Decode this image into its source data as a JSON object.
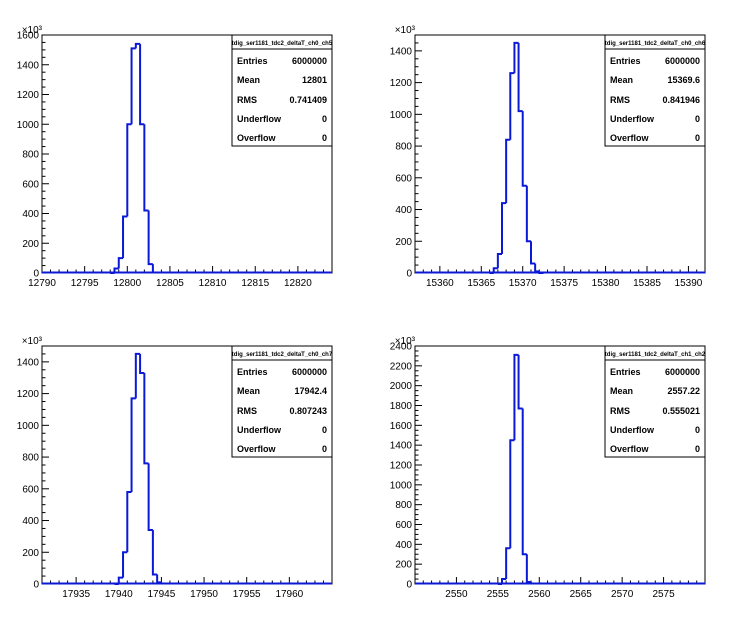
{
  "chart_data": [
    {
      "type": "bar",
      "histogram": true,
      "exponent_label": "×10³",
      "stats": {
        "title": "tdig_ser1181_tdc2_deltaT_ch0_ch5",
        "rows": [
          {
            "label": "Entries",
            "value": "6000000"
          },
          {
            "label": "Mean",
            "value": "12801"
          },
          {
            "label": "RMS",
            "value": "0.741409"
          },
          {
            "label": "Underflow",
            "value": "0"
          },
          {
            "label": "Overflow",
            "value": "0"
          }
        ]
      },
      "xlim": [
        12790,
        12824
      ],
      "ylim": [
        0,
        1600
      ],
      "xticks": [
        "12790",
        "12795",
        "12800",
        "12805",
        "12810",
        "12815",
        "12820"
      ],
      "xtick_values": [
        12790,
        12795,
        12800,
        12805,
        12810,
        12815,
        12820
      ],
      "yticks": [
        "0",
        "200",
        "400",
        "600",
        "800",
        "1000",
        "1200",
        "1400",
        "1600"
      ],
      "ytick_values": [
        0,
        200,
        400,
        600,
        800,
        1000,
        1200,
        1400,
        1600
      ],
      "bin_edges": [
        12798,
        12798.5,
        12799,
        12799.5,
        12800,
        12800.5,
        12801,
        12801.5,
        12802,
        12802.5,
        12803
      ],
      "values": [
        0,
        30,
        100,
        380,
        1000,
        1510,
        1540,
        1000,
        420,
        60,
        0
      ]
    },
    {
      "type": "bar",
      "histogram": true,
      "exponent_label": "×10³",
      "stats": {
        "title": "tdig_ser1181_tdc2_deltaT_ch0_ch6",
        "rows": [
          {
            "label": "Entries",
            "value": "6000000"
          },
          {
            "label": "Mean",
            "value": "15369.6"
          },
          {
            "label": "RMS",
            "value": "0.841946"
          },
          {
            "label": "Underflow",
            "value": "0"
          },
          {
            "label": "Overflow",
            "value": "0"
          }
        ]
      },
      "xlim": [
        15357,
        15392
      ],
      "ylim": [
        0,
        1500
      ],
      "xticks": [
        "15360",
        "15365",
        "15370",
        "15375",
        "15380",
        "15385",
        "15390"
      ],
      "xtick_values": [
        15360,
        15365,
        15370,
        15375,
        15380,
        15385,
        15390
      ],
      "yticks": [
        "0",
        "200",
        "400",
        "600",
        "800",
        "1000",
        "1200",
        "1400"
      ],
      "ytick_values": [
        0,
        200,
        400,
        600,
        800,
        1000,
        1200,
        1400
      ],
      "bin_edges": [
        15366,
        15366.5,
        15367,
        15367.5,
        15368,
        15368.5,
        15369,
        15369.5,
        15370,
        15370.5,
        15371,
        15371.5,
        15372,
        15372.5
      ],
      "values": [
        0,
        30,
        120,
        440,
        840,
        1260,
        1450,
        1020,
        550,
        200,
        60,
        10,
        0
      ]
    },
    {
      "type": "bar",
      "histogram": true,
      "exponent_label": "×10³",
      "stats": {
        "title": "tdig_ser1181_tdc2_deltaT_ch0_ch7",
        "rows": [
          {
            "label": "Entries",
            "value": "6000000"
          },
          {
            "label": "Mean",
            "value": "17942.4"
          },
          {
            "label": "RMS",
            "value": "0.807243"
          },
          {
            "label": "Underflow",
            "value": "0"
          },
          {
            "label": "Overflow",
            "value": "0"
          }
        ]
      },
      "xlim": [
        17931,
        17965
      ],
      "ylim": [
        0,
        1500
      ],
      "xticks": [
        "17935",
        "17940",
        "17945",
        "17950",
        "17955",
        "17960"
      ],
      "xtick_values": [
        17935,
        17940,
        17945,
        17950,
        17955,
        17960
      ],
      "yticks": [
        "0",
        "200",
        "400",
        "600",
        "800",
        "1000",
        "1200",
        "1400"
      ],
      "ytick_values": [
        0,
        200,
        400,
        600,
        800,
        1000,
        1200,
        1400
      ],
      "bin_edges": [
        17939.5,
        17940,
        17940.5,
        17941,
        17941.5,
        17942,
        17942.5,
        17943,
        17943.5,
        17944,
        17944.5,
        17945
      ],
      "values": [
        0,
        40,
        200,
        580,
        1170,
        1450,
        1330,
        760,
        340,
        60,
        10
      ]
    },
    {
      "type": "bar",
      "histogram": true,
      "exponent_label": "×10³",
      "stats": {
        "title": "tdig_ser1181_tdc2_deltaT_ch1_ch2",
        "rows": [
          {
            "label": "Entries",
            "value": "6000000"
          },
          {
            "label": "Mean",
            "value": "2557.22"
          },
          {
            "label": "RMS",
            "value": "0.555021"
          },
          {
            "label": "Underflow",
            "value": "0"
          },
          {
            "label": "Overflow",
            "value": "0"
          }
        ]
      },
      "xlim": [
        2545,
        2580
      ],
      "ylim": [
        0,
        2400
      ],
      "xticks": [
        "2550",
        "2555",
        "2560",
        "2565",
        "2570",
        "2575"
      ],
      "xtick_values": [
        2550,
        2555,
        2560,
        2565,
        2570,
        2575
      ],
      "yticks": [
        "0",
        "200",
        "400",
        "600",
        "800",
        "1000",
        "1200",
        "1400",
        "1600",
        "1800",
        "2000",
        "2200",
        "2400"
      ],
      "ytick_values": [
        0,
        200,
        400,
        600,
        800,
        1000,
        1200,
        1400,
        1600,
        1800,
        2000,
        2200,
        2400
      ],
      "bin_edges": [
        2555,
        2555.5,
        2556,
        2556.5,
        2557,
        2557.5,
        2558,
        2558.5,
        2559
      ],
      "values": [
        0,
        50,
        360,
        1450,
        2310,
        1770,
        300,
        20
      ]
    }
  ],
  "colors": {
    "histogram_line": "#0b19d6",
    "axis": "#000000",
    "background": "#ffffff"
  }
}
